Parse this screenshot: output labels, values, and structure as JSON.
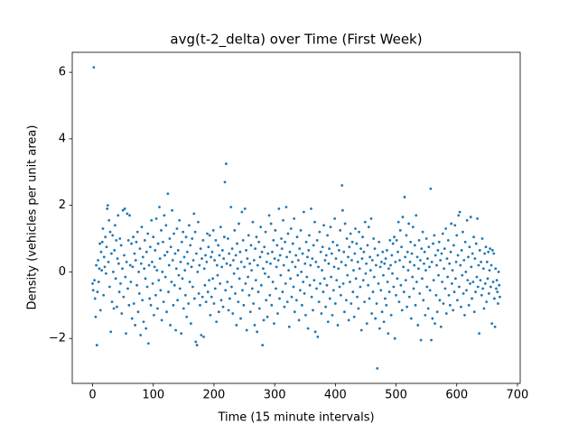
{
  "chart_data": {
    "type": "scatter",
    "title": "avg(t-2_delta) over Time (First Week)",
    "x_label": "Time (15 minute intervals)",
    "y_label": "Density (vehicles per unit area)",
    "color": "#1f77b4",
    "xlim": [
      -33.55,
      704.55
    ],
    "ylim": [
      -3.35,
      6.6
    ],
    "xticks": [
      0,
      100,
      200,
      300,
      400,
      500,
      600,
      700
    ],
    "yticks": [
      {
        "value": -2,
        "label": "−2"
      },
      0,
      2,
      4,
      6
    ],
    "x": [
      0,
      1,
      2,
      3,
      4,
      5,
      6,
      7,
      8,
      9,
      10,
      11,
      12,
      13,
      14,
      15,
      16,
      17,
      18,
      19,
      20,
      21,
      22,
      23,
      24,
      25,
      26,
      27,
      28,
      29,
      30,
      31,
      32,
      33,
      34,
      35,
      36,
      37,
      38,
      39,
      40,
      41,
      42,
      43,
      44,
      45,
      46,
      47,
      48,
      49,
      50,
      51,
      52,
      53,
      54,
      55,
      56,
      57,
      58,
      59,
      60,
      61,
      62,
      63,
      64,
      65,
      66,
      67,
      68,
      69,
      70,
      71,
      72,
      73,
      74,
      75,
      76,
      77,
      78,
      79,
      80,
      81,
      82,
      83,
      84,
      85,
      86,
      87,
      88,
      89,
      90,
      91,
      92,
      93,
      94,
      95,
      96,
      97,
      98,
      99,
      100,
      101,
      102,
      103,
      104,
      105,
      106,
      107,
      108,
      109,
      110,
      111,
      112,
      113,
      114,
      115,
      116,
      117,
      118,
      119,
      120,
      121,
      122,
      123,
      124,
      125,
      126,
      127,
      128,
      129,
      130,
      131,
      132,
      133,
      134,
      135,
      136,
      137,
      138,
      139,
      140,
      141,
      142,
      143,
      144,
      145,
      146,
      147,
      148,
      149,
      150,
      151,
      152,
      153,
      154,
      155,
      156,
      157,
      158,
      159,
      160,
      161,
      162,
      163,
      164,
      165,
      166,
      167,
      168,
      169,
      170,
      171,
      172,
      173,
      174,
      175,
      176,
      177,
      178,
      179,
      180,
      181,
      182,
      183,
      184,
      185,
      186,
      187,
      188,
      189,
      190,
      191,
      192,
      193,
      194,
      195,
      196,
      197,
      198,
      199,
      200,
      201,
      202,
      203,
      204,
      205,
      206,
      207,
      208,
      209,
      210,
      211,
      212,
      213,
      214,
      215,
      216,
      217,
      218,
      219,
      220,
      221,
      222,
      223,
      224,
      225,
      226,
      227,
      228,
      229,
      230,
      231,
      232,
      233,
      234,
      235,
      236,
      237,
      238,
      239,
      240,
      241,
      242,
      243,
      244,
      245,
      246,
      247,
      248,
      249,
      250,
      251,
      252,
      253,
      254,
      255,
      256,
      257,
      258,
      259,
      260,
      261,
      262,
      263,
      264,
      265,
      266,
      267,
      268,
      269,
      270,
      271,
      272,
      273,
      274,
      275,
      276,
      277,
      278,
      279,
      280,
      281,
      282,
      283,
      284,
      285,
      286,
      287,
      288,
      289,
      290,
      291,
      292,
      293,
      294,
      295,
      296,
      297,
      298,
      299,
      300,
      301,
      302,
      303,
      304,
      305,
      306,
      307,
      308,
      309,
      310,
      311,
      312,
      313,
      314,
      315,
      316,
      317,
      318,
      319,
      320,
      321,
      322,
      323,
      324,
      325,
      326,
      327,
      328,
      329,
      330,
      331,
      332,
      333,
      334,
      335,
      336,
      337,
      338,
      339,
      340,
      341,
      342,
      343,
      344,
      345,
      346,
      347,
      348,
      349,
      350,
      351,
      352,
      353,
      354,
      355,
      356,
      357,
      358,
      359,
      360,
      361,
      362,
      363,
      364,
      365,
      366,
      367,
      368,
      369,
      370,
      371,
      372,
      373,
      374,
      375,
      376,
      377,
      378,
      379,
      380,
      381,
      382,
      383,
      384,
      385,
      386,
      387,
      388,
      389,
      390,
      391,
      392,
      393,
      394,
      395,
      396,
      397,
      398,
      399,
      400,
      401,
      402,
      403,
      404,
      405,
      406,
      407,
      408,
      409,
      410,
      411,
      412,
      413,
      414,
      415,
      416,
      417,
      418,
      419,
      420,
      421,
      422,
      423,
      424,
      425,
      426,
      427,
      428,
      429,
      430,
      431,
      432,
      433,
      434,
      435,
      436,
      437,
      438,
      439,
      440,
      441,
      442,
      443,
      444,
      445,
      446,
      447,
      448,
      449,
      450,
      451,
      452,
      453,
      454,
      455,
      456,
      457,
      458,
      459,
      460,
      461,
      462,
      463,
      464,
      465,
      466,
      467,
      468,
      469,
      470,
      471,
      472,
      473,
      474,
      475,
      476,
      477,
      478,
      479,
      480,
      481,
      482,
      483,
      484,
      485,
      486,
      487,
      488,
      489,
      490,
      491,
      492,
      493,
      494,
      495,
      496,
      497,
      498,
      499,
      500,
      501,
      502,
      503,
      504,
      505,
      506,
      507,
      508,
      509,
      510,
      511,
      512,
      513,
      514,
      515,
      516,
      517,
      518,
      519,
      520,
      521,
      522,
      523,
      524,
      525,
      526,
      527,
      528,
      529,
      530,
      531,
      532,
      533,
      534,
      535,
      536,
      537,
      538,
      539,
      540,
      541,
      542,
      543,
      544,
      545,
      546,
      547,
      548,
      549,
      550,
      551,
      552,
      553,
      554,
      555,
      556,
      557,
      558,
      559,
      560,
      561,
      562,
      563,
      564,
      565,
      566,
      567,
      568,
      569,
      570,
      571,
      572,
      573,
      574,
      575,
      576,
      577,
      578,
      579,
      580,
      581,
      582,
      583,
      584,
      585,
      586,
      587,
      588,
      589,
      590,
      591,
      592,
      593,
      594,
      595,
      596,
      597,
      598,
      599,
      600,
      601,
      602,
      603,
      604,
      605,
      606,
      607,
      608,
      609,
      610,
      611,
      612,
      613,
      614,
      615,
      616,
      617,
      618,
      619,
      620,
      621,
      622,
      623,
      624,
      625,
      626,
      627,
      628,
      629,
      630,
      631,
      632,
      633,
      634,
      635,
      636,
      637,
      638,
      639,
      640,
      641,
      642,
      643,
      644,
      645,
      646,
      647,
      648,
      649,
      650,
      651,
      652,
      653,
      654,
      655,
      656,
      657,
      658,
      659,
      660,
      661,
      662,
      663,
      664,
      665,
      666,
      667,
      668,
      669,
      670,
      671
    ],
    "values": [
      -0.35,
      -0.55,
      6.15,
      -0.25,
      -0.8,
      -1.35,
      0.2,
      -2.2,
      -0.6,
      0.35,
      -0.3,
      0.1,
      0.85,
      -1.15,
      0.6,
      0.05,
      0.9,
      1.3,
      -0.7,
      0.45,
      0.15,
      1.05,
      -0.05,
      0.75,
      1.9,
      2.0,
      0.3,
      1.55,
      -0.45,
      1.2,
      -1.8,
      0.55,
      -0.9,
      1.1,
      0.0,
      -1.1,
      0.65,
      1.4,
      -0.2,
      0.95,
      -1.05,
      0.4,
      1.7,
      0.25,
      -0.6,
      1.0,
      -0.35,
      0.8,
      -1.25,
      0.1,
      1.85,
      -0.75,
      0.5,
      1.9,
      -0.15,
      -1.85,
      0.3,
      1.75,
      -0.5,
      0.95,
      -1.0,
      1.7,
      0.2,
      -0.3,
      0.85,
      -1.4,
      0.15,
      1.05,
      -0.95,
      0.55,
      -1.6,
      0.35,
      0.9,
      -0.4,
      1.2,
      -1.2,
      0.0,
      -0.65,
      0.7,
      -1.9,
      0.25,
      1.35,
      -0.85,
      0.45,
      -1.5,
      0.1,
      0.95,
      -0.2,
      -1.7,
      0.6,
      -0.45,
      1.15,
      -2.15,
      0.2,
      -0.8,
      0.75,
      -1.0,
      1.55,
      0.3,
      -0.35,
      1.05,
      -1.3,
      0.15,
      0.65,
      -0.7,
      1.6,
      0.05,
      -1.1,
      0.85,
      -0.25,
      1.95,
      0.4,
      -0.55,
      1.25,
      -1.45,
      0.0,
      0.9,
      -0.9,
      1.7,
      0.5,
      -0.15,
      1.4,
      -1.2,
      0.6,
      2.35,
      -0.6,
      0.2,
      1.0,
      -1.6,
      0.75,
      -0.3,
      1.85,
      0.35,
      -1.0,
      1.15,
      -0.4,
      0.55,
      -1.75,
      0.1,
      1.3,
      -0.85,
      0.65,
      -0.1,
      1.55,
      -0.5,
      0.3,
      -1.85,
      0.9,
      -0.2,
      1.2,
      -1.1,
      0.45,
      0.05,
      -0.7,
      1.05,
      -1.35,
      0.6,
      0.25,
      -0.95,
      1.4,
      -0.3,
      0.8,
      -1.55,
      0.15,
      1.0,
      -0.45,
      0.35,
      1.75,
      -0.8,
      1.2,
      -2.1,
      0.55,
      -2.2,
      0.0,
      1.5,
      -0.65,
      0.2,
      -1.0,
      0.7,
      -1.9,
      0.4,
      -0.75,
      0.95,
      -1.95,
      0.1,
      -0.4,
      0.5,
      -0.9,
      0.3,
      1.15,
      -0.6,
      0.75,
      -0.25,
      1.1,
      -1.3,
      0.45,
      -0.75,
      0.6,
      -0.2,
      1.25,
      -0.95,
      0.35,
      -0.5,
      0.95,
      -1.5,
      0.2,
      -0.1,
      0.8,
      -1.2,
      0.5,
      -0.35,
      1.35,
      -0.85,
      0.15,
      0.65,
      -1.05,
      0.4,
      1.05,
      2.7,
      -0.55,
      3.25,
      0.25,
      -0.3,
      1.0,
      -1.15,
      0.55,
      -0.8,
      0.2,
      1.95,
      -0.45,
      0.7,
      -1.25,
      0.35,
      -0.05,
      1.25,
      -0.65,
      0.5,
      -1.6,
      0.85,
      0.1,
      -0.9,
      1.45,
      -0.2,
      0.6,
      -1.4,
      0.3,
      1.8,
      -0.55,
      0.95,
      -1.0,
      0.15,
      1.9,
      -0.35,
      0.65,
      -1.75,
      0.4,
      -0.15,
      1.1,
      -0.7,
      0.25,
      -1.2,
      0.8,
      0.05,
      -0.5,
      1.5,
      -0.95,
      0.35,
      -1.6,
      0.7,
      -0.25,
      1.05,
      -1.8,
      0.2,
      -0.6,
      0.9,
      -1.1,
      0.45,
      1.35,
      -0.4,
      0.6,
      -2.2,
      0.1,
      -1.45,
      0.75,
      -0.05,
      1.2,
      -0.85,
      0.3,
      -1.35,
      0.55,
      -0.15,
      1.7,
      -0.7,
      0.25,
      1.45,
      -1.0,
      0.6,
      -0.3,
      0.95,
      -1.55,
      0.4,
      1.25,
      -0.5,
      0.15,
      0.8,
      -1.25,
      0.35,
      1.9,
      -0.8,
      0.5,
      -0.1,
      1.0,
      0.7,
      -0.6,
      1.55,
      0.2,
      -1.05,
      0.9,
      -0.35,
      1.95,
      0.45,
      -0.9,
      1.15,
      0.05,
      -1.65,
      0.6,
      -0.2,
      1.3,
      -0.75,
      0.3,
      0.85,
      -0.45,
      1.6,
      -1.2,
      0.15,
      0.5,
      -0.85,
      1.05,
      -0.1,
      0.35,
      -1.45,
      0.7,
      -0.55,
      1.25,
      0.0,
      -1.0,
      0.55,
      -0.3,
      1.8,
      -0.65,
      0.25,
      -1.3,
      0.9,
      -0.15,
      0.45,
      -1.7,
      0.65,
      1.1,
      -0.4,
      0.2,
      1.9,
      -0.75,
      0.4,
      -1.15,
      0.8,
      -0.25,
      1.5,
      -1.8,
      0.3,
      -0.5,
      0.95,
      -1.95,
      0.15,
      -0.9,
      1.2,
      -0.35,
      0.6,
      -1.25,
      0.05,
      0.75,
      -0.6,
      1.4,
      -0.2,
      0.35,
      -1.05,
      0.5,
      -0.4,
      1.1,
      -1.5,
      0.25,
      0.7,
      -0.8,
      1.35,
      -0.15,
      0.55,
      -1.3,
      0.9,
      -0.55,
      0.15,
      1.6,
      -0.95,
      0.4,
      -0.25,
      0.8,
      -1.6,
      0.1,
      0.65,
      -0.45,
      1.25,
      -0.7,
      0.3,
      2.6,
      1.85,
      -0.35,
      0.6,
      -1.2,
      1.45,
      0.2,
      -0.85,
      1.0,
      -0.1,
      0.45,
      -1.45,
      0.75,
      -0.3,
      1.15,
      -0.95,
      0.35,
      0.9,
      -0.6,
      0.05,
      -1.35,
      0.55,
      1.3,
      -0.2,
      0.85,
      -0.75,
      0.3,
      -1.1,
      1.2,
      0.1,
      -0.45,
      0.7,
      -1.75,
      0.4,
      1.05,
      -0.25,
      0.6,
      -0.9,
      1.5,
      -0.05,
      0.25,
      -1.55,
      0.8,
      -0.4,
      1.35,
      -0.8,
      0.45,
      0.05,
      1.6,
      -1.25,
      0.35,
      -0.6,
      1.0,
      -0.15,
      0.7,
      -1.4,
      0.2,
      -0.95,
      -2.9,
      0.5,
      -0.35,
      0.9,
      -1.7,
      0.15,
      -0.55,
      0.3,
      -1.2,
      0.6,
      -0.1,
      -1.5,
      0.25,
      -0.8,
      0.4,
      -1.0,
      0.65,
      -0.3,
      -1.85,
      0.1,
      -0.6,
      0.95,
      0.2,
      -1.3,
      0.5,
      -0.05,
      0.85,
      -0.45,
      1.05,
      -2.0,
      0.3,
      -0.7,
      0.95,
      -0.2,
      0.6,
      1.5,
      -0.9,
      0.35,
      1.25,
      -0.4,
      0.75,
      -1.15,
      1.65,
      0.15,
      -0.6,
      2.25,
      0.45,
      -0.25,
      1.1,
      -1.05,
      0.6,
      0.05,
      1.45,
      -0.75,
      0.3,
      0.9,
      -1.4,
      0.55,
      -0.15,
      1.35,
      -0.5,
      0.2,
      0.8,
      -1.0,
      1.7,
      -0.3,
      0.45,
      -1.6,
      0.1,
      0.95,
      -0.65,
      0.35,
      -2.05,
      0.7,
      -0.2,
      1.2,
      -0.85,
      0.25,
      0.6,
      -1.3,
      0.05,
      1.0,
      -0.45,
      0.4,
      -1.1,
      0.75,
      0.15,
      -0.55,
      2.5,
      -2.05,
      0.3,
      -1.4,
      0.85,
      -0.25,
      1.1,
      -1.55,
      0.5,
      -0.7,
      0.2,
      -1.2,
      0.65,
      -0.1,
      0.9,
      -0.85,
      0.35,
      -1.65,
      0.55,
      -0.3,
      1.15,
      -0.95,
      0.1,
      0.7,
      -0.5,
      1.3,
      -1.25,
      0.4,
      -0.15,
      0.95,
      -0.7,
      0.25,
      -1.0,
      0.6,
      1.45,
      -0.35,
      0.05,
      -1.15,
      0.8,
      -0.6,
      1.4,
      -0.2,
      0.3,
      1.1,
      -0.85,
      0.5,
      1.7,
      -0.45,
      1.8,
      0.2,
      -1.05,
      0.65,
      -0.1,
      1.2,
      -0.65,
      0.35,
      -1.3,
      0.9,
      0.0,
      -0.55,
      1.55,
      -0.25,
      0.45,
      -1.0,
      0.75,
      -0.35,
      1.65,
      0.15,
      -0.8,
      0.55,
      -0.3,
      1.05,
      -1.2,
      0.4,
      -0.6,
      0.85,
      -0.15,
      1.6,
      -0.45,
      0.2,
      -1.85,
      0.65,
      -0.25,
      0.3,
      -0.7,
      1.0,
      -0.5,
      0.1,
      -1.1,
      0.55,
      -0.35,
      0.75,
      -0.9,
      0.3,
      -0.2,
      0.6,
      -0.65,
      0.05,
      0.7,
      -0.45,
      0.2,
      -1.55,
      0.65,
      -0.3,
      0.55,
      -0.8,
      -1.65,
      0.1,
      -0.5,
      -0.25,
      -0.6,
      -0.95,
      0.0,
      -0.4,
      -0.75
    ]
  }
}
